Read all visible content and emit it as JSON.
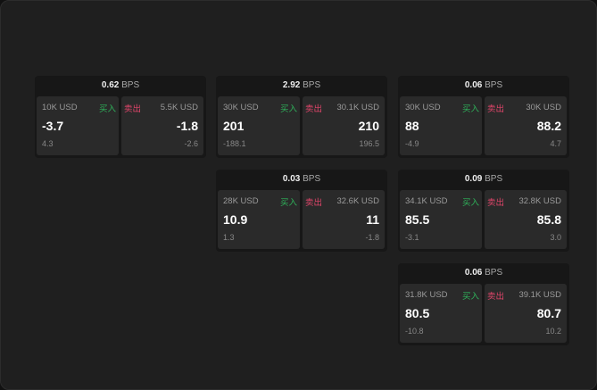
{
  "unit": "BPS",
  "buy_label": "买入",
  "sell_label": "卖出",
  "colors": {
    "buy": "#2fb25a",
    "sell": "#e0456a"
  },
  "cards": [
    {
      "spread": "0.62",
      "buy": {
        "size": "10K USD",
        "price": "-3.7",
        "change": "4.3"
      },
      "sell": {
        "size": "5.5K USD",
        "price": "-1.8",
        "change": "-2.6"
      }
    },
    {
      "spread": "2.92",
      "buy": {
        "size": "30K USD",
        "price": "201",
        "change": "-188.1"
      },
      "sell": {
        "size": "30.1K USD",
        "price": "210",
        "change": "196.5"
      }
    },
    {
      "spread": "0.06",
      "buy": {
        "size": "30K USD",
        "price": "88",
        "change": "-4.9"
      },
      "sell": {
        "size": "30K USD",
        "price": "88.2",
        "change": "4.7"
      }
    },
    {
      "spread": "0.03",
      "buy": {
        "size": "28K USD",
        "price": "10.9",
        "change": "1.3"
      },
      "sell": {
        "size": "32.6K USD",
        "price": "11",
        "change": "-1.8"
      }
    },
    {
      "spread": "0.09",
      "buy": {
        "size": "34.1K USD",
        "price": "85.5",
        "change": "-3.1"
      },
      "sell": {
        "size": "32.8K USD",
        "price": "85.8",
        "change": "3.0"
      }
    },
    {
      "spread": "0.06",
      "buy": {
        "size": "31.8K USD",
        "price": "80.5",
        "change": "-10.8"
      },
      "sell": {
        "size": "39.1K USD",
        "price": "80.7",
        "change": "10.2"
      }
    }
  ]
}
